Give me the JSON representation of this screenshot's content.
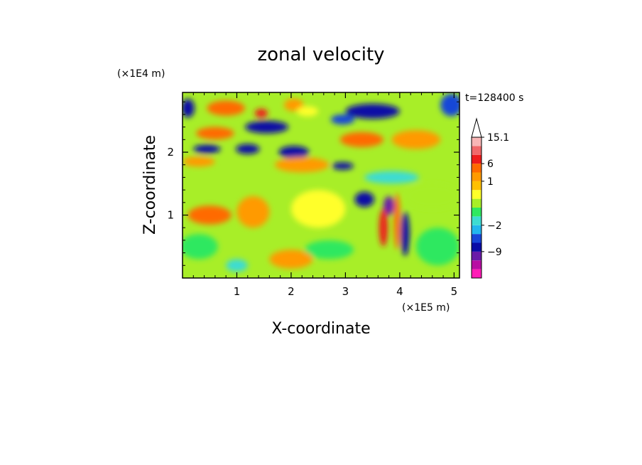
{
  "chart_data": {
    "type": "heatmap",
    "title": "zonal velocity",
    "xlabel": "X-coordinate",
    "ylabel": "Z-coordinate",
    "x_units": "(×1E5 m)",
    "y_units": "(×1E4 m)",
    "time_label": "t=128400 s",
    "x_ticks": [
      1,
      2,
      3,
      4,
      5
    ],
    "y_ticks": [
      1,
      2
    ],
    "xlim": [
      0,
      5.1
    ],
    "ylim": [
      0,
      2.95
    ],
    "colorbar": {
      "labels": [
        {
          "text": "15.1",
          "level": 15.1
        },
        {
          "text": "6",
          "level": 6
        },
        {
          "text": "1",
          "level": 1
        },
        {
          "text": "-2",
          "level": -2
        },
        {
          "text": "-9",
          "level": -9
        }
      ],
      "bins": [
        {
          "color": "#ff1cb6",
          "level": -12
        },
        {
          "color": "#b80fa3",
          "level": -10.5
        },
        {
          "color": "#6a1aa8",
          "level": -9
        },
        {
          "color": "#0a0ba6",
          "level": -6
        },
        {
          "color": "#1846d8",
          "level": -3
        },
        {
          "color": "#22b6ee",
          "level": -2
        },
        {
          "color": "#3ddcd2",
          "level": -1.5
        },
        {
          "color": "#2fe860",
          "level": -1
        },
        {
          "color": "#a8ee28",
          "level": 0
        },
        {
          "color": "#ffff2a",
          "level": 0.5
        },
        {
          "color": "#ffc000",
          "level": 1
        },
        {
          "color": "#ff9a00",
          "level": 3
        },
        {
          "color": "#ff6a00",
          "level": 6
        },
        {
          "color": "#ee1c1c",
          "level": 9
        },
        {
          "color": "#f0686a",
          "level": 12
        },
        {
          "color": "#f8b6b6",
          "level": 15.1
        }
      ],
      "extend_max_arrow_color": "#ffffff"
    },
    "field_description": "2D contour field of zonal velocity vs X (×1E5 m) and Z (×1E4 m)",
    "field_blobs": [
      {
        "x": 0.1,
        "z": 2.7,
        "rx": 0.12,
        "rz": 0.15,
        "v": -6
      },
      {
        "x": 0.8,
        "z": 2.7,
        "rx": 0.35,
        "rz": 0.12,
        "v": 6
      },
      {
        "x": 1.45,
        "z": 2.62,
        "rx": 0.12,
        "rz": 0.07,
        "v": 9
      },
      {
        "x": 2.05,
        "z": 2.75,
        "rx": 0.18,
        "rz": 0.1,
        "v": 3
      },
      {
        "x": 2.3,
        "z": 2.65,
        "rx": 0.2,
        "rz": 0.08,
        "v": 0.5
      },
      {
        "x": 3.5,
        "z": 2.65,
        "rx": 0.5,
        "rz": 0.12,
        "v": -6
      },
      {
        "x": 2.95,
        "z": 2.52,
        "rx": 0.22,
        "rz": 0.08,
        "v": -3
      },
      {
        "x": 4.95,
        "z": 2.75,
        "rx": 0.2,
        "rz": 0.18,
        "v": -3
      },
      {
        "x": 1.55,
        "z": 2.4,
        "rx": 0.4,
        "rz": 0.1,
        "v": -6
      },
      {
        "x": 0.6,
        "z": 2.3,
        "rx": 0.35,
        "rz": 0.1,
        "v": 6
      },
      {
        "x": 3.3,
        "z": 2.2,
        "rx": 0.4,
        "rz": 0.12,
        "v": 6
      },
      {
        "x": 4.3,
        "z": 2.2,
        "rx": 0.45,
        "rz": 0.15,
        "v": 3
      },
      {
        "x": 0.45,
        "z": 2.05,
        "rx": 0.25,
        "rz": 0.07,
        "v": -6
      },
      {
        "x": 1.2,
        "z": 2.05,
        "rx": 0.22,
        "rz": 0.08,
        "v": -6
      },
      {
        "x": 2.05,
        "z": 2.0,
        "rx": 0.28,
        "rz": 0.1,
        "v": -6
      },
      {
        "x": 2.95,
        "z": 1.78,
        "rx": 0.2,
        "rz": 0.06,
        "v": -6
      },
      {
        "x": 2.2,
        "z": 1.8,
        "rx": 0.5,
        "rz": 0.12,
        "v": 3
      },
      {
        "x": 0.3,
        "z": 1.85,
        "rx": 0.3,
        "rz": 0.08,
        "v": 3
      },
      {
        "x": 3.85,
        "z": 1.6,
        "rx": 0.5,
        "rz": 0.1,
        "v": -1.5
      },
      {
        "x": 3.35,
        "z": 1.25,
        "rx": 0.18,
        "rz": 0.12,
        "v": -6
      },
      {
        "x": 3.8,
        "z": 1.15,
        "rx": 0.1,
        "rz": 0.15,
        "v": -9
      },
      {
        "x": 3.95,
        "z": 0.9,
        "rx": 0.06,
        "rz": 0.45,
        "v": 6
      },
      {
        "x": 4.1,
        "z": 0.7,
        "rx": 0.08,
        "rz": 0.35,
        "v": -6
      },
      {
        "x": 3.7,
        "z": 0.8,
        "rx": 0.08,
        "rz": 0.3,
        "v": 9
      },
      {
        "x": 0.5,
        "z": 1.0,
        "rx": 0.4,
        "rz": 0.15,
        "v": 6
      },
      {
        "x": 1.3,
        "z": 1.05,
        "rx": 0.3,
        "rz": 0.25,
        "v": 3
      },
      {
        "x": 0.3,
        "z": 0.5,
        "rx": 0.35,
        "rz": 0.2,
        "v": -1
      },
      {
        "x": 2.7,
        "z": 0.45,
        "rx": 0.45,
        "rz": 0.15,
        "v": -1
      },
      {
        "x": 4.7,
        "z": 0.5,
        "rx": 0.4,
        "rz": 0.3,
        "v": -1
      },
      {
        "x": 2.0,
        "z": 0.3,
        "rx": 0.4,
        "rz": 0.15,
        "v": 3
      },
      {
        "x": 1.0,
        "z": 0.2,
        "rx": 0.2,
        "rz": 0.1,
        "v": -1.5
      },
      {
        "x": 4.6,
        "z": 1.3,
        "rx": 0.5,
        "rz": 0.2,
        "v": 0
      },
      {
        "x": 2.5,
        "z": 1.1,
        "rx": 0.5,
        "rz": 0.3,
        "v": 0.5
      }
    ]
  }
}
